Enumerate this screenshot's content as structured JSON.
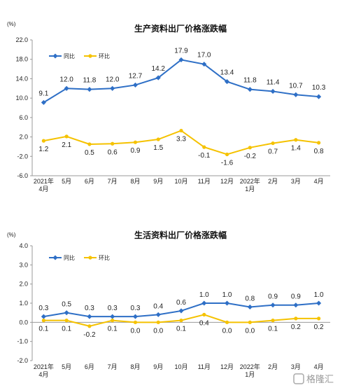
{
  "charts": [
    {
      "unit": "(%)",
      "chart_data": {
        "type": "line",
        "title": "生产资料出厂价格涨跌幅",
        "categories": [
          "2021年\n4月",
          "5月",
          "6月",
          "7月",
          "8月",
          "9月",
          "10月",
          "11月",
          "12月",
          "2022年\n1月",
          "2月",
          "3月",
          "4月"
        ],
        "ylim": [
          -6.0,
          22.0
        ],
        "yticks": [
          "22.0",
          "18.0",
          "14.0",
          "10.0",
          "6.0",
          "2.0",
          "-2.0",
          "-6.0"
        ],
        "ytick_values": [
          22,
          18,
          14,
          10,
          6,
          2,
          -2,
          -6
        ],
        "legend": "top-left",
        "series": [
          {
            "name": "同比",
            "color": "#2e6fc6",
            "values": [
              9.1,
              12.0,
              11.8,
              12.0,
              12.7,
              14.2,
              17.9,
              17.0,
              13.4,
              11.8,
              11.4,
              10.7,
              10.3
            ],
            "labels": [
              "9.1",
              "12.0",
              "11.8",
              "12.0",
              "12.7",
              "14.2",
              "17.9",
              "17.0",
              "13.4",
              "11.8",
              "11.4",
              "10.7",
              "10.3"
            ]
          },
          {
            "name": "环比",
            "color": "#f5c200",
            "values": [
              1.2,
              2.1,
              0.5,
              0.6,
              0.9,
              1.5,
              3.3,
              -0.1,
              -1.6,
              -0.2,
              0.7,
              1.4,
              0.8
            ],
            "labels": [
              "1.2",
              "2.1",
              "0.5",
              "0.6",
              "0.9",
              "1.5",
              "3.3",
              "-0.1",
              "-1.6",
              "-0.2",
              "0.7",
              "1.4",
              "0.8"
            ]
          }
        ]
      }
    },
    {
      "unit": "(%)",
      "chart_data": {
        "type": "line",
        "title": "生活资料出厂价格涨跌幅",
        "categories": [
          "2021年\n4月",
          "5月",
          "6月",
          "7月",
          "8月",
          "9月",
          "10月",
          "11月",
          "12月",
          "2022年\n1月",
          "2月",
          "3月",
          "4月"
        ],
        "ylim": [
          -2.0,
          4.0
        ],
        "yticks": [
          "4.0",
          "3.0",
          "2.0",
          "1.0",
          "0.0",
          "-1.0",
          "-2.0"
        ],
        "ytick_values": [
          4,
          3,
          2,
          1,
          0,
          -1,
          -2
        ],
        "legend": "top-left",
        "series": [
          {
            "name": "同比",
            "color": "#2e6fc6",
            "values": [
              0.3,
              0.5,
              0.3,
              0.3,
              0.3,
              0.4,
              0.6,
              1.0,
              1.0,
              0.8,
              0.9,
              0.9,
              1.0
            ],
            "labels": [
              "0.3",
              "0.5",
              "0.3",
              "0.3",
              "0.3",
              "0.4",
              "0.6",
              "1.0",
              "1.0",
              "0.8",
              "0.9",
              "0.9",
              "1.0"
            ]
          },
          {
            "name": "环比",
            "color": "#f5c200",
            "values": [
              0.1,
              0.1,
              -0.2,
              0.1,
              0.0,
              0.0,
              0.1,
              0.4,
              0.0,
              0.0,
              0.1,
              0.2,
              0.2
            ],
            "labels": [
              "0.1",
              "0.1",
              "-0.2",
              "0.1",
              "0.0",
              "0.0",
              "0.1",
              "0.4",
              "0.0",
              "0.0",
              "0.1",
              "0.2",
              "0.2"
            ]
          }
        ]
      }
    }
  ],
  "watermark": "格隆汇"
}
